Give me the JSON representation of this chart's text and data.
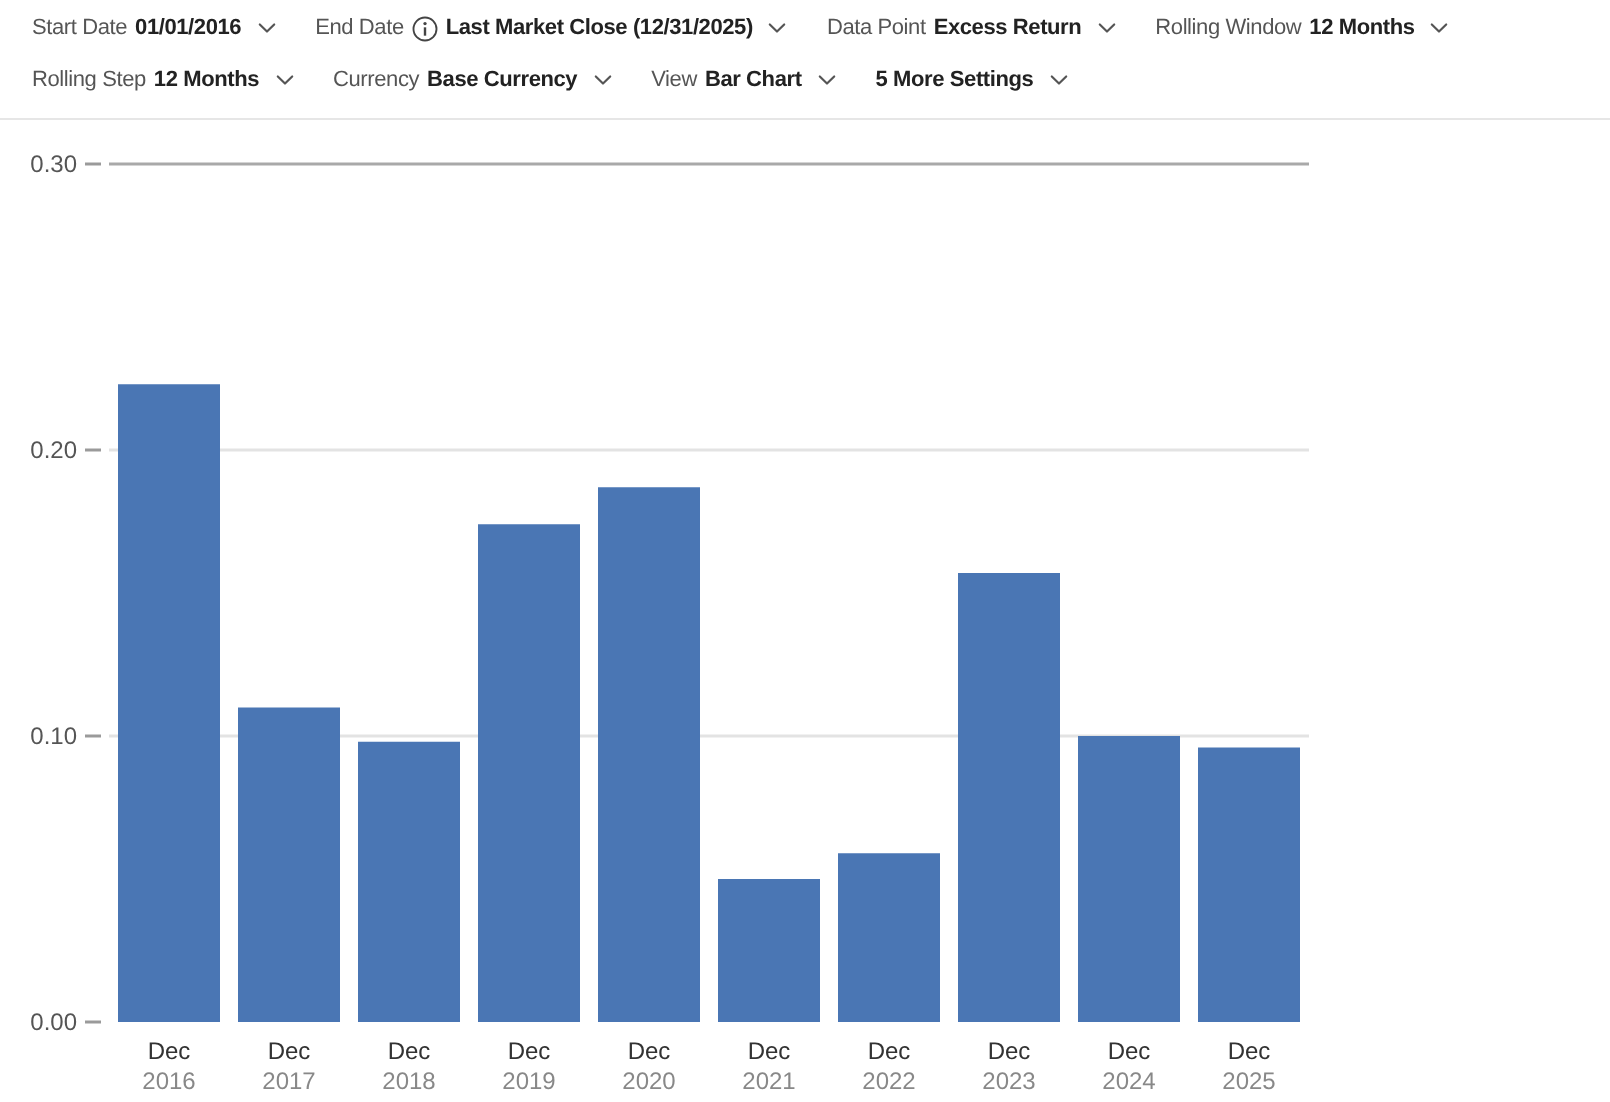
{
  "chart_data": {
    "type": "bar",
    "annotations": [
      "Start Date",
      "01/01/2016",
      "End Date",
      "Last Market Close (12/31/2025)",
      "Data Point",
      "Excess Return",
      "Rolling Window",
      "12 Months",
      "Rolling Step",
      "12 Months",
      "Currency",
      "Base Currency",
      "View",
      "Bar Chart",
      "5 More Settings"
    ],
    "categories": [
      "Dec 2016",
      "Dec 2017",
      "Dec 2018",
      "Dec 2019",
      "Dec 2020",
      "Dec 2021",
      "Dec 2022",
      "Dec 2023",
      "Dec 2024",
      "Dec 2025"
    ],
    "values": [
      0.223,
      0.11,
      0.098,
      0.174,
      0.187,
      0.05,
      0.059,
      0.157,
      0.1,
      0.096
    ],
    "color": "#4a76b4",
    "ylim": [
      0,
      0.3
    ],
    "yticks": [
      {
        "value": 0,
        "label": "0.00"
      },
      {
        "value": 0.1,
        "label": "0.10"
      },
      {
        "value": 0.2,
        "label": "0.20"
      },
      {
        "value": 0.3,
        "label": "0.30"
      }
    ],
    "grid": "y"
  }
}
